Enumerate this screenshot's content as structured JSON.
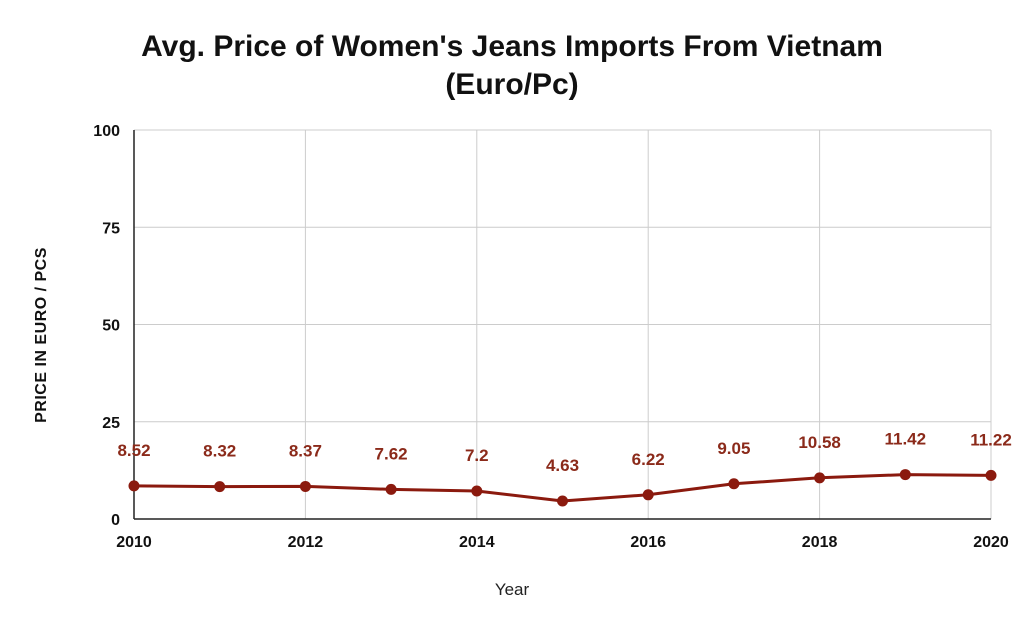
{
  "chart_data": {
    "type": "line",
    "title_line1": "Avg. Price of Women's Jeans Imports From Vietnam",
    "title_line2": "(Euro/Pc)",
    "xlabel": "Year",
    "ylabel": "PRICE IN EURO / PCS",
    "x": [
      2010,
      2011,
      2012,
      2013,
      2014,
      2015,
      2016,
      2017,
      2018,
      2019,
      2020
    ],
    "x_ticks": [
      "2010",
      "2012",
      "2014",
      "2016",
      "2018",
      "2020"
    ],
    "y_ticks": [
      "0",
      "25",
      "50",
      "75",
      "100"
    ],
    "ylim": [
      0,
      100
    ],
    "grid": true,
    "series": [
      {
        "values": [
          8.52,
          8.32,
          8.37,
          7.62,
          7.2,
          4.63,
          6.22,
          9.05,
          10.58,
          11.42,
          11.22
        ],
        "labels": [
          "8.52",
          "8.32",
          "8.37",
          "7.62",
          "7.2",
          "4.63",
          "6.22",
          "9.05",
          "10.58",
          "11.42",
          "11.22"
        ]
      }
    ],
    "colors": {
      "line": "#8b1a0e",
      "label": "#8b2a1a",
      "grid": "#cccccc",
      "axis": "#222222"
    }
  }
}
